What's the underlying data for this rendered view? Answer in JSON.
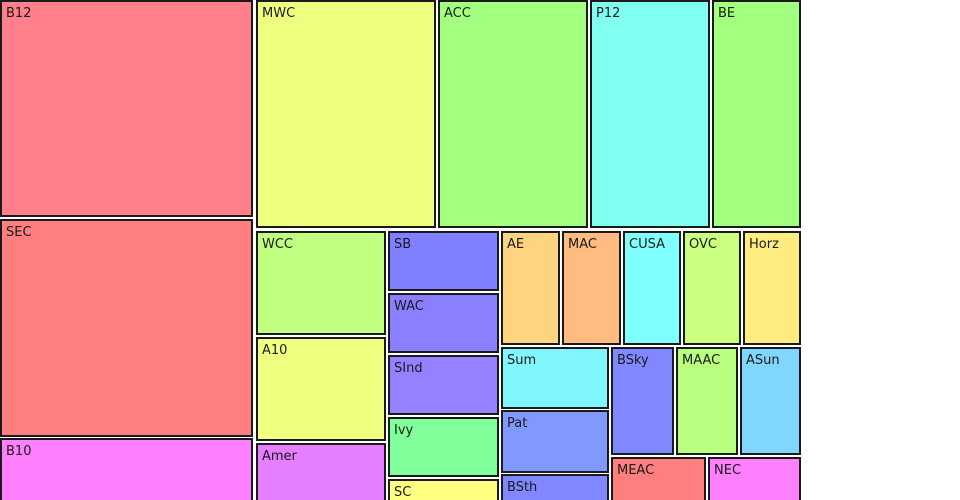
{
  "chart_data": {
    "type": "treemap",
    "items": [
      {
        "label": "B12",
        "color": "#ff7f8a"
      },
      {
        "label": "SEC",
        "color": "#ff7f80"
      },
      {
        "label": "B10",
        "color": "#ff80ff"
      },
      {
        "label": "MWC",
        "color": "#eeff80"
      },
      {
        "label": "ACC",
        "color": "#a2ff80"
      },
      {
        "label": "P12",
        "color": "#80fff0"
      },
      {
        "label": "BE",
        "color": "#a3ff80"
      },
      {
        "label": "WCC",
        "color": "#c0ff80"
      },
      {
        "label": "A10",
        "color": "#f0ff80"
      },
      {
        "label": "Amer",
        "color": "#e67fff"
      },
      {
        "label": "SB",
        "color": "#7f80ff"
      },
      {
        "label": "WAC",
        "color": "#8a80ff"
      },
      {
        "label": "SInd",
        "color": "#9580ff"
      },
      {
        "label": "Ivy",
        "color": "#80ff9a"
      },
      {
        "label": "SC",
        "color": "#ffff80"
      },
      {
        "label": "AE",
        "color": "#ffd480"
      },
      {
        "label": "MAC",
        "color": "#ffbb80"
      },
      {
        "label": "CUSA",
        "color": "#80ffff"
      },
      {
        "label": "OVC",
        "color": "#caff80"
      },
      {
        "label": "Horz",
        "color": "#ffec80"
      },
      {
        "label": "Sum",
        "color": "#80f6ff"
      },
      {
        "label": "Pat",
        "color": "#8098ff"
      },
      {
        "label": "BSth",
        "color": "#8087ff"
      },
      {
        "label": "BSky",
        "color": "#8087ff"
      },
      {
        "label": "MAAC",
        "color": "#b8ff80"
      },
      {
        "label": "ASun",
        "color": "#80d6ff"
      },
      {
        "label": "MEAC",
        "color": "#ff7f7f"
      },
      {
        "label": "NEC",
        "color": "#ff80ff"
      }
    ]
  }
}
